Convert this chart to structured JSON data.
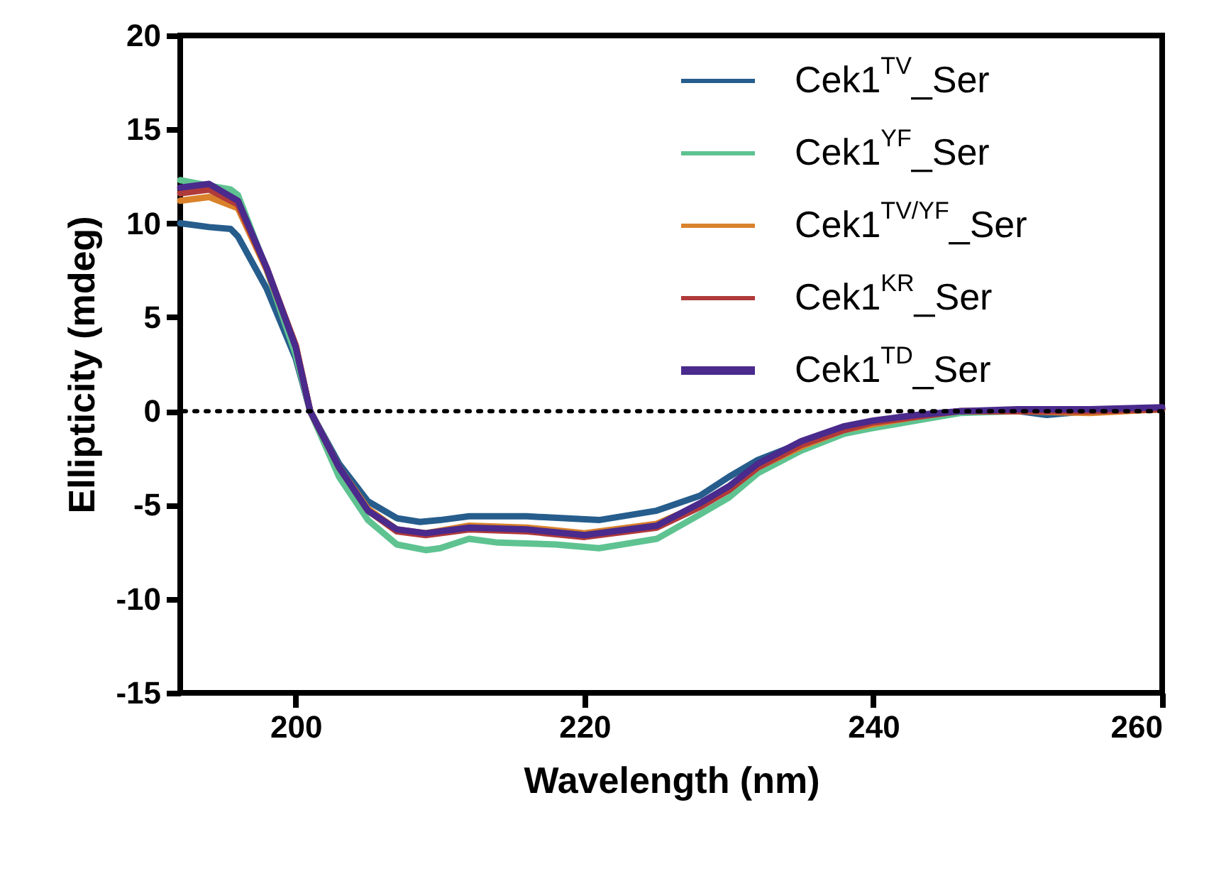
{
  "chart_data": {
    "type": "line",
    "xlabel": "Wavelength (nm)",
    "ylabel": "Ellipticity (mdeg)",
    "xlim": [
      192,
      260
    ],
    "xticks": [
      200,
      220,
      240,
      260
    ],
    "ylim": [
      -15,
      20
    ],
    "yticks": [
      -15,
      -10,
      -5,
      0,
      5,
      10,
      15,
      20
    ],
    "grid": false,
    "legend": "top right",
    "marker": "none",
    "line_style": "solid",
    "ref_lines": [
      {
        "axis": "y",
        "value": 0,
        "color": "#000000",
        "line_style": "dotted"
      }
    ],
    "series": [
      {
        "name": "Cek1$^{TV}$_Ser",
        "color": "#265d8c",
        "x": [
          192,
          194,
          195.5,
          196,
          198,
          200,
          201,
          203,
          205,
          207,
          208.6,
          210,
          212,
          216,
          221,
          225,
          228,
          230,
          232,
          235,
          238,
          240,
          243,
          246,
          250,
          252,
          255,
          260
        ],
        "values": [
          10.0,
          9.8,
          9.7,
          9.3,
          6.5,
          2.8,
          0,
          -2.8,
          -4.8,
          -5.7,
          -5.9,
          -5.8,
          -5.6,
          -5.6,
          -5.8,
          -5.3,
          -4.5,
          -3.5,
          -2.6,
          -1.7,
          -0.9,
          -0.6,
          -0.3,
          0,
          0,
          -0.2,
          0,
          0.1
        ]
      },
      {
        "name": "Cek1$^{YF}$_Ser",
        "color": "#5ec391",
        "x": [
          192,
          194,
          195.5,
          196,
          198,
          200,
          201,
          203,
          205,
          207,
          209,
          210,
          212,
          214,
          218,
          221,
          225,
          228,
          230,
          232,
          235,
          238,
          240,
          243,
          246,
          250,
          255,
          260
        ],
        "values": [
          12.3,
          12.0,
          11.8,
          11.5,
          7.5,
          3.0,
          0,
          -3.5,
          -5.8,
          -7.1,
          -7.4,
          -7.3,
          -6.8,
          -7.0,
          -7.1,
          -7.3,
          -6.8,
          -5.5,
          -4.6,
          -3.3,
          -2.1,
          -1.2,
          -0.9,
          -0.5,
          -0.1,
          0,
          0,
          0.1
        ]
      },
      {
        "name": "Cek1$^{TV/YF}$_Ser",
        "color": "#d9822b",
        "x": [
          192,
          194,
          196,
          198,
          200,
          201,
          203,
          205,
          207,
          209,
          212,
          216,
          220,
          225,
          228,
          230,
          232,
          235,
          238,
          240,
          243,
          246,
          250,
          255,
          260
        ],
        "values": [
          11.2,
          11.4,
          10.8,
          7.5,
          3.5,
          0,
          -3.0,
          -5.2,
          -6.3,
          -6.5,
          -6.1,
          -6.2,
          -6.5,
          -6.0,
          -5.0,
          -4.2,
          -3.0,
          -1.9,
          -1.0,
          -0.7,
          -0.3,
          0,
          0,
          -0.1,
          0.1
        ]
      },
      {
        "name": "Cek1$^{KR}$_Ser",
        "color": "#b03a3a",
        "x": [
          192,
          194,
          196,
          198,
          200,
          201,
          203,
          205,
          207,
          209,
          212,
          216,
          220,
          225,
          228,
          230,
          232,
          235,
          238,
          240,
          243,
          246,
          250,
          255,
          260
        ],
        "values": [
          11.6,
          11.8,
          11.0,
          7.6,
          3.5,
          0,
          -3.0,
          -5.3,
          -6.4,
          -6.6,
          -6.3,
          -6.4,
          -6.7,
          -6.2,
          -5.1,
          -4.2,
          -3.0,
          -1.8,
          -1.0,
          -0.6,
          -0.3,
          0,
          0,
          0,
          0.1
        ]
      },
      {
        "name": "Cek1$^{TD}$_Ser",
        "color": "#4a2a8c",
        "x": [
          192,
          194,
          196,
          198,
          200,
          201,
          203,
          205,
          207,
          209,
          212,
          216,
          220,
          225,
          228,
          230,
          232,
          235,
          238,
          240,
          243,
          246,
          250,
          255,
          260
        ],
        "values": [
          11.9,
          12.1,
          11.2,
          7.6,
          3.4,
          0,
          -3.0,
          -5.3,
          -6.3,
          -6.5,
          -6.2,
          -6.3,
          -6.6,
          -6.1,
          -4.9,
          -4.0,
          -2.8,
          -1.6,
          -0.8,
          -0.5,
          -0.2,
          0,
          0.1,
          0.1,
          0.2
        ]
      }
    ]
  }
}
